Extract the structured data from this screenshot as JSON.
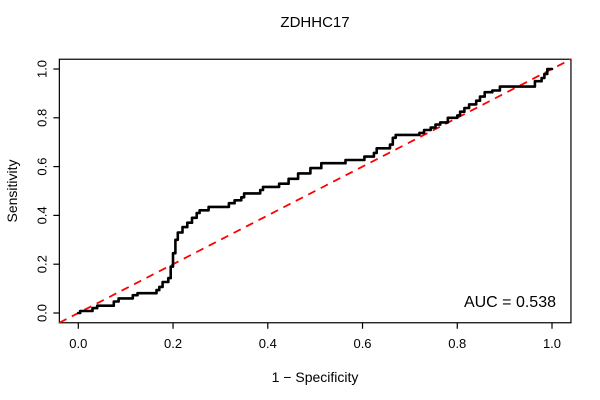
{
  "title": "ZDHHC17",
  "annotation": {
    "auc_label": "AUC = 0.538"
  },
  "chart_data": {
    "type": "line",
    "subtype": "roc-curve",
    "title": "ZDHHC17",
    "xlabel": "1 − Specificity",
    "ylabel": "Sensitivity",
    "xlim": [
      0,
      1
    ],
    "ylim": [
      0,
      1
    ],
    "grid": false,
    "legend": "none",
    "auc": 0.538,
    "x_ticks": [
      "0.0",
      "0.2",
      "0.4",
      "0.6",
      "0.8",
      "1.0"
    ],
    "x_tick_values": [
      0,
      0.2,
      0.4,
      0.6,
      0.8,
      1.0
    ],
    "y_ticks": [
      "0.0",
      "0.2",
      "0.4",
      "0.6",
      "0.8",
      "1.0"
    ],
    "y_tick_values": [
      0,
      0.2,
      0.4,
      0.6,
      0.8,
      1.0
    ],
    "colors": {
      "curve": "#000000",
      "reference": "#ff0000",
      "text": "#000000",
      "background": "#ffffff",
      "box": "#000000"
    },
    "reference_line": {
      "type": "diagonal",
      "style": "dashed",
      "from": [
        0,
        0
      ],
      "to": [
        1,
        1
      ],
      "color": "#ff0000"
    },
    "series": [
      {
        "name": "ROC curve",
        "color": "#000000",
        "points": [
          [
            0,
            0
          ],
          [
            0.004,
            0
          ],
          [
            0.004,
            0.008
          ],
          [
            0.03,
            0.008
          ],
          [
            0.03,
            0.02
          ],
          [
            0.04,
            0.02
          ],
          [
            0.04,
            0.03
          ],
          [
            0.075,
            0.03
          ],
          [
            0.075,
            0.047
          ],
          [
            0.085,
            0.047
          ],
          [
            0.085,
            0.06
          ],
          [
            0.115,
            0.06
          ],
          [
            0.115,
            0.073
          ],
          [
            0.125,
            0.073
          ],
          [
            0.125,
            0.081
          ],
          [
            0.165,
            0.081
          ],
          [
            0.165,
            0.094
          ],
          [
            0.171,
            0.094
          ],
          [
            0.171,
            0.107
          ],
          [
            0.178,
            0.107
          ],
          [
            0.178,
            0.127
          ],
          [
            0.19,
            0.127
          ],
          [
            0.19,
            0.143
          ],
          [
            0.195,
            0.143
          ],
          [
            0.195,
            0.19
          ],
          [
            0.2,
            0.19
          ],
          [
            0.2,
            0.245
          ],
          [
            0.205,
            0.245
          ],
          [
            0.205,
            0.3
          ],
          [
            0.21,
            0.3
          ],
          [
            0.21,
            0.33
          ],
          [
            0.22,
            0.33
          ],
          [
            0.22,
            0.352
          ],
          [
            0.23,
            0.352
          ],
          [
            0.23,
            0.37
          ],
          [
            0.24,
            0.37
          ],
          [
            0.24,
            0.39
          ],
          [
            0.25,
            0.39
          ],
          [
            0.25,
            0.41
          ],
          [
            0.256,
            0.41
          ],
          [
            0.256,
            0.421
          ],
          [
            0.275,
            0.421
          ],
          [
            0.275,
            0.435
          ],
          [
            0.318,
            0.435
          ],
          [
            0.318,
            0.45
          ],
          [
            0.33,
            0.45
          ],
          [
            0.33,
            0.462
          ],
          [
            0.344,
            0.462
          ],
          [
            0.344,
            0.474
          ],
          [
            0.35,
            0.474
          ],
          [
            0.35,
            0.49
          ],
          [
            0.384,
            0.49
          ],
          [
            0.384,
            0.504
          ],
          [
            0.39,
            0.504
          ],
          [
            0.39,
            0.517
          ],
          [
            0.424,
            0.517
          ],
          [
            0.424,
            0.53
          ],
          [
            0.444,
            0.53
          ],
          [
            0.444,
            0.55
          ],
          [
            0.464,
            0.55
          ],
          [
            0.464,
            0.572
          ],
          [
            0.49,
            0.572
          ],
          [
            0.49,
            0.594
          ],
          [
            0.513,
            0.594
          ],
          [
            0.513,
            0.614
          ],
          [
            0.564,
            0.614
          ],
          [
            0.564,
            0.627
          ],
          [
            0.604,
            0.627
          ],
          [
            0.604,
            0.641
          ],
          [
            0.624,
            0.641
          ],
          [
            0.624,
            0.656
          ],
          [
            0.63,
            0.656
          ],
          [
            0.63,
            0.675
          ],
          [
            0.658,
            0.675
          ],
          [
            0.658,
            0.69
          ],
          [
            0.664,
            0.69
          ],
          [
            0.664,
            0.718
          ],
          [
            0.67,
            0.718
          ],
          [
            0.67,
            0.73
          ],
          [
            0.72,
            0.73
          ],
          [
            0.72,
            0.738
          ],
          [
            0.73,
            0.738
          ],
          [
            0.73,
            0.75
          ],
          [
            0.744,
            0.75
          ],
          [
            0.744,
            0.76
          ],
          [
            0.754,
            0.76
          ],
          [
            0.754,
            0.772
          ],
          [
            0.764,
            0.772
          ],
          [
            0.764,
            0.781
          ],
          [
            0.78,
            0.781
          ],
          [
            0.78,
            0.8
          ],
          [
            0.8,
            0.8
          ],
          [
            0.8,
            0.81
          ],
          [
            0.806,
            0.81
          ],
          [
            0.806,
            0.825
          ],
          [
            0.815,
            0.825
          ],
          [
            0.815,
            0.84
          ],
          [
            0.825,
            0.84
          ],
          [
            0.825,
            0.855
          ],
          [
            0.84,
            0.855
          ],
          [
            0.84,
            0.87
          ],
          [
            0.848,
            0.87
          ],
          [
            0.848,
            0.887
          ],
          [
            0.858,
            0.887
          ],
          [
            0.858,
            0.905
          ],
          [
            0.874,
            0.905
          ],
          [
            0.874,
            0.912
          ],
          [
            0.89,
            0.912
          ],
          [
            0.89,
            0.928
          ],
          [
            0.964,
            0.928
          ],
          [
            0.964,
            0.95
          ],
          [
            0.978,
            0.95
          ],
          [
            0.978,
            0.963
          ],
          [
            0.984,
            0.963
          ],
          [
            0.984,
            0.98
          ],
          [
            0.99,
            0.98
          ],
          [
            0.99,
            1
          ],
          [
            1,
            1
          ]
        ]
      }
    ]
  }
}
